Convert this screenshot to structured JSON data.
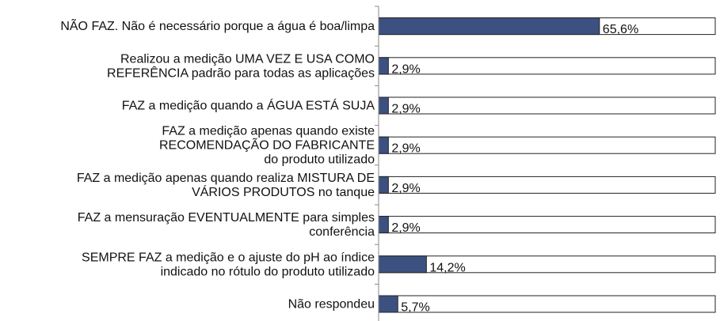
{
  "chart_data": {
    "type": "barh",
    "categories": [
      "NÃO FAZ. Não é necessário porque a água é boa/limpa",
      "Realizou a medição UMA VEZ E USA COMO\nREFERÊNCIA padrão para todas as aplicações",
      "FAZ a medição quando a ÁGUA ESTÁ SUJA",
      "FAZ a medição apenas quando existe\nRECOMENDAÇÃO DO FABRICANTE\ndo produto utilizado",
      "FAZ a medição apenas quando realiza MISTURA DE\nVÁRIOS PRODUTOS no tanque",
      "FAZ a mensuração EVENTUALMENTE para simples\nconferência",
      "SEMPRE FAZ a medição e o ajuste do pH ao índice\nindicado no rótulo do produto utilizado",
      "Não respondeu"
    ],
    "values": [
      65.6,
      2.9,
      2.9,
      2.9,
      2.9,
      2.9,
      14.2,
      5.7
    ],
    "value_labels": [
      "65,6%",
      "2,9%",
      "2,9%",
      "2,9%",
      "2,9%",
      "2,9%",
      "14,2%",
      "5,7%"
    ],
    "color": "#3d5180",
    "xlim": [
      0,
      100
    ]
  }
}
